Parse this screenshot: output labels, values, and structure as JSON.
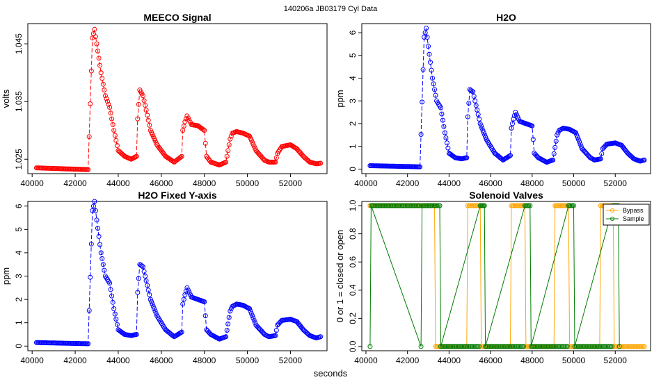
{
  "figure": {
    "suptitle": "140206a    JB03179    Cyl Data",
    "xlabel": "seconds"
  },
  "chart_data": [
    {
      "id": "meeco",
      "type": "line",
      "title": "MEECO Signal",
      "xlabel": "",
      "ylabel": "volts",
      "xlim": [
        39800,
        53700
      ],
      "ylim": [
        1.0225,
        1.0485
      ],
      "xticks": [
        40000,
        42000,
        44000,
        46000,
        48000,
        50000,
        52000
      ],
      "yticks": [
        1.025,
        1.035,
        1.045
      ],
      "ytick_labels": [
        "1.025",
        "1.035",
        "1.045"
      ],
      "color": "#ff0000",
      "x": [
        40200,
        42600,
        42800,
        42900,
        43000,
        43200,
        43400,
        43600,
        43800,
        44000,
        44300,
        44600,
        44850,
        44900,
        45000,
        45150,
        45300,
        45500,
        45800,
        46200,
        46600,
        46950,
        47000,
        47100,
        47200,
        47400,
        47700,
        48000,
        48100,
        48300,
        48700,
        49000,
        49200,
        49300,
        49500,
        49800,
        50100,
        50400,
        50800,
        51000,
        51300,
        51400,
        51600,
        52000,
        52300,
        52600,
        52900,
        53200,
        53400
      ],
      "y": [
        1.0235,
        1.0232,
        1.046,
        1.0475,
        1.045,
        1.04,
        1.036,
        1.034,
        1.03,
        1.0265,
        1.0255,
        1.025,
        1.0255,
        1.032,
        1.037,
        1.036,
        1.0335,
        1.03,
        1.0275,
        1.0255,
        1.0245,
        1.0255,
        1.03,
        1.0315,
        1.0325,
        1.031,
        1.0308,
        1.03,
        1.0255,
        1.0245,
        1.024,
        1.0245,
        1.0285,
        1.0295,
        1.0298,
        1.0295,
        1.029,
        1.0265,
        1.0248,
        1.0245,
        1.0245,
        1.026,
        1.0272,
        1.0275,
        1.0268,
        1.0255,
        1.0245,
        1.0242,
        1.0243
      ]
    },
    {
      "id": "h2o",
      "type": "line",
      "title": "H2O",
      "xlabel": "",
      "ylabel": "ppm",
      "xlim": [
        39800,
        53700
      ],
      "ylim": [
        -0.2,
        6.4
      ],
      "xticks": [
        40000,
        42000,
        44000,
        46000,
        48000,
        50000,
        52000
      ],
      "yticks": [
        0,
        1,
        2,
        3,
        4,
        5,
        6
      ],
      "ytick_labels": [
        "0",
        "1",
        "2",
        "3",
        "4",
        "5",
        "6"
      ],
      "color": "#0000ff",
      "x": [
        40200,
        42600,
        42800,
        42900,
        43000,
        43200,
        43400,
        43600,
        43800,
        44000,
        44300,
        44600,
        44850,
        44900,
        45000,
        45150,
        45300,
        45500,
        45800,
        46200,
        46600,
        46950,
        47000,
        47100,
        47200,
        47400,
        47700,
        48000,
        48100,
        48300,
        48700,
        49000,
        49200,
        49300,
        49500,
        49800,
        50100,
        50400,
        50800,
        51000,
        51300,
        51400,
        51600,
        52000,
        52300,
        52600,
        52900,
        53200,
        53400
      ],
      "y": [
        0.15,
        0.1,
        5.8,
        6.2,
        5.4,
        4.0,
        3.0,
        2.7,
        1.6,
        0.7,
        0.5,
        0.45,
        0.5,
        2.3,
        3.5,
        3.4,
        2.8,
        2.0,
        1.3,
        0.7,
        0.4,
        0.6,
        1.8,
        2.2,
        2.5,
        2.1,
        2.0,
        1.9,
        0.7,
        0.5,
        0.3,
        0.4,
        1.5,
        1.7,
        1.8,
        1.75,
        1.6,
        0.9,
        0.5,
        0.4,
        0.45,
        0.9,
        1.1,
        1.15,
        1.05,
        0.7,
        0.45,
        0.35,
        0.4
      ]
    },
    {
      "id": "h2o_fixed",
      "type": "line",
      "title": "H2O Fixed Y-axis",
      "xlabel": "",
      "ylabel": "ppm",
      "xlim": [
        39800,
        53700
      ],
      "ylim": [
        -0.2,
        6.2
      ],
      "xticks": [
        40000,
        42000,
        44000,
        46000,
        48000,
        50000,
        52000
      ],
      "yticks": [
        0,
        1,
        2,
        3,
        4,
        5,
        6
      ],
      "ytick_labels": [
        "0",
        "1",
        "2",
        "3",
        "4",
        "5",
        "6"
      ],
      "color": "#0000ff",
      "x": [
        40200,
        42600,
        42800,
        42900,
        43000,
        43200,
        43400,
        43600,
        43800,
        44000,
        44300,
        44600,
        44850,
        44900,
        45000,
        45150,
        45300,
        45500,
        45800,
        46200,
        46600,
        46950,
        47000,
        47100,
        47200,
        47400,
        47700,
        48000,
        48100,
        48300,
        48700,
        49000,
        49200,
        49300,
        49500,
        49800,
        50100,
        50400,
        50800,
        51000,
        51300,
        51400,
        51600,
        52000,
        52300,
        52600,
        52900,
        53200,
        53400
      ],
      "y": [
        0.15,
        0.1,
        5.8,
        6.2,
        5.4,
        4.0,
        3.0,
        2.7,
        1.6,
        0.7,
        0.5,
        0.45,
        0.5,
        2.3,
        3.5,
        3.4,
        2.8,
        2.0,
        1.3,
        0.7,
        0.4,
        0.6,
        1.8,
        2.2,
        2.5,
        2.1,
        2.0,
        1.9,
        0.7,
        0.5,
        0.3,
        0.4,
        1.5,
        1.7,
        1.8,
        1.75,
        1.6,
        0.9,
        0.5,
        0.4,
        0.45,
        0.9,
        1.1,
        1.15,
        1.05,
        0.7,
        0.45,
        0.35,
        0.4
      ]
    },
    {
      "id": "valves",
      "type": "line",
      "title": "Solenoid Valves",
      "xlabel": "",
      "ylabel": "0 or 1 = closed or open",
      "xlim": [
        39800,
        53700
      ],
      "ylim": [
        -0.03,
        1.03
      ],
      "xticks": [
        40000,
        42000,
        44000,
        46000,
        48000,
        50000,
        52000
      ],
      "yticks": [
        0,
        0.2,
        0.4,
        0.6,
        0.8,
        1
      ],
      "ytick_labels": [
        "0.0",
        "0.2",
        "0.4",
        "0.6",
        "0.8",
        "1.0"
      ],
      "legend": {
        "position": "top-right",
        "entries": [
          "Bypass",
          "Sample"
        ]
      },
      "series": [
        {
          "name": "Bypass",
          "color": "#ffa500",
          "x": [
            40200,
            42650,
            42700,
            43300,
            43350,
            44850,
            44900,
            45500,
            45550,
            46950,
            47000,
            47650,
            47700,
            49050,
            49100,
            49750,
            49800,
            51250,
            51300,
            51900,
            51950,
            53400
          ],
          "y": [
            1,
            1,
            1,
            1,
            0,
            0,
            1,
            1,
            0,
            0,
            1,
            1,
            0,
            0,
            1,
            1,
            0,
            0,
            1,
            1,
            0,
            0
          ]
        },
        {
          "name": "Sample",
          "color": "#007a00",
          "x": [
            40200,
            40250,
            42650,
            42700,
            43300,
            43350,
            43550,
            43600,
            45500,
            45550,
            45700,
            45750,
            47650,
            47700,
            47900,
            47950,
            49750,
            49800,
            50000,
            50050,
            51900,
            51950,
            52150,
            52200
          ],
          "y": [
            0,
            1,
            0,
            1,
            1,
            1,
            1,
            0,
            1,
            1,
            1,
            0,
            1,
            1,
            1,
            0,
            1,
            1,
            1,
            0,
            1,
            1,
            1,
            0
          ]
        }
      ]
    }
  ]
}
